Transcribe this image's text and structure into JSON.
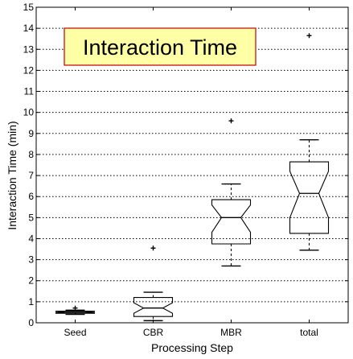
{
  "chart_data": {
    "type": "boxplot",
    "notched": true,
    "title": "Interaction Time",
    "title_colors": {
      "background": "#ffffa6",
      "border": "#c00000"
    },
    "xlabel": "Processing Step",
    "ylabel": "Interaction Time (min)",
    "ylim": [
      0,
      15
    ],
    "yticks": [
      0,
      1,
      2,
      3,
      4,
      5,
      6,
      7,
      8,
      9,
      10,
      11,
      12,
      13,
      14,
      15
    ],
    "grid": "horizontal-dotted",
    "categories": [
      "Seed",
      "CBR",
      "MBR",
      "total"
    ],
    "boxes": [
      {
        "label": "Seed",
        "whisker_low": 0.4,
        "q1": 0.45,
        "median": 0.5,
        "q3": 0.55,
        "whisker_high": 0.6,
        "notch_low": 0.47,
        "notch_high": 0.53,
        "outliers": [
          0.7
        ]
      },
      {
        "label": "CBR",
        "whisker_low": 0.1,
        "q1": 0.3,
        "median": 0.7,
        "q3": 1.2,
        "whisker_high": 1.45,
        "notch_low": 0.45,
        "notch_high": 0.95,
        "outliers": [
          3.55
        ]
      },
      {
        "label": "MBR",
        "whisker_low": 2.7,
        "q1": 3.75,
        "median": 5.0,
        "q3": 5.85,
        "whisker_high": 6.6,
        "notch_low": 4.3,
        "notch_high": 5.6,
        "outliers": [
          9.6
        ]
      },
      {
        "label": "total",
        "whisker_low": 3.45,
        "q1": 4.25,
        "median": 6.15,
        "q3": 7.65,
        "whisker_high": 8.7,
        "notch_low": 5.0,
        "notch_high": 7.2,
        "outliers": [
          13.65
        ]
      }
    ]
  }
}
